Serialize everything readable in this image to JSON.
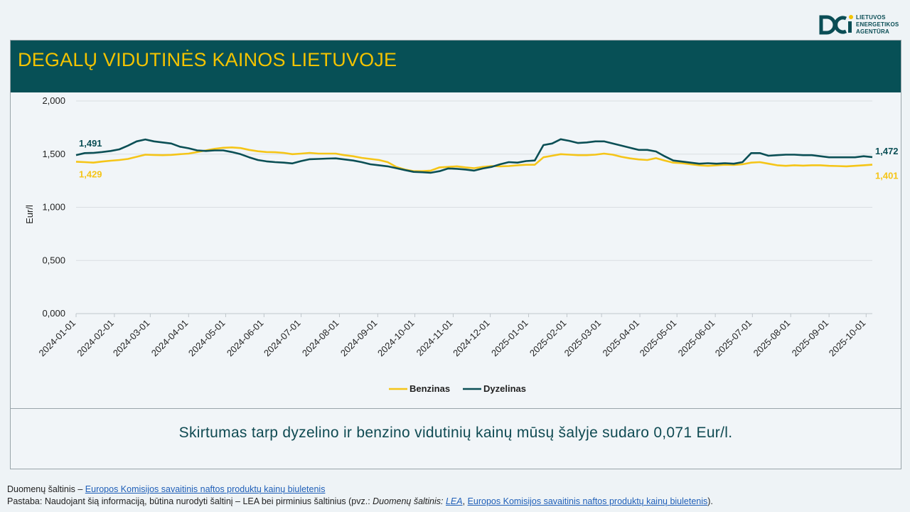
{
  "logo": {
    "line1": "LIETUVOS",
    "line2": "ENERGETIKOS",
    "line3": "AGENTŪRA",
    "color": "#0a4d55"
  },
  "title": "DEGALŲ VIDUTINĖS KAINOS LIETUVOJE",
  "summary": "Skirtumas tarp dyzelino ir benzino vidutinių kainų mūsų šalyje sudaro 0,071 Eur/l.",
  "footer": {
    "source_prefix": "Duomenų šaltinis – ",
    "source_link": "Europos Komisijos savaitinis naftos produktų kainų biuletenis",
    "note_prefix": "Pastaba: Naudojant šią informaciją, būtina nurodyti šaltinį – LEA bei pirminius šaltinius (pvz.: ",
    "note_italic": "Duomenų šaltinis: ",
    "note_link1": "LEA",
    "note_sep": ", ",
    "note_link2": "Europos Komisijos savaitinis naftos produktų kainų biuletenis",
    "note_suffix": ")."
  },
  "chart_data": {
    "type": "line",
    "ylabel": "Eur/l",
    "ylim": [
      0,
      2
    ],
    "yticks": [
      "0,000",
      "0,500",
      "1,000",
      "1,500",
      "2,000"
    ],
    "xlim": [
      "2024-01-01",
      "2025-10-06"
    ],
    "xticks": [
      "2024-01-01",
      "2024-02-01",
      "2024-03-01",
      "2024-04-01",
      "2024-05-01",
      "2024-06-01",
      "2024-07-01",
      "2024-08-01",
      "2024-09-01",
      "2024-10-01",
      "2024-11-01",
      "2024-12-01",
      "2025-01-01",
      "2025-02-01",
      "2025-03-01",
      "2025-04-01",
      "2025-05-01",
      "2025-06-01",
      "2025-07-01",
      "2025-08-01",
      "2025-09-01",
      "2025-10-01"
    ],
    "grid": true,
    "legend": "bottom",
    "series": [
      {
        "name": "Benzinas",
        "color": "#f5c518",
        "start_label": "1,429",
        "end_label": "1,401",
        "points": [
          [
            "2024-01-01",
            1.429
          ],
          [
            "2024-01-08",
            1.425
          ],
          [
            "2024-01-15",
            1.42
          ],
          [
            "2024-01-22",
            1.43
          ],
          [
            "2024-01-29",
            1.438
          ],
          [
            "2024-02-05",
            1.445
          ],
          [
            "2024-02-12",
            1.455
          ],
          [
            "2024-02-19",
            1.475
          ],
          [
            "2024-02-26",
            1.495
          ],
          [
            "2024-03-04",
            1.492
          ],
          [
            "2024-03-11",
            1.49
          ],
          [
            "2024-03-18",
            1.493
          ],
          [
            "2024-03-25",
            1.5
          ],
          [
            "2024-04-01",
            1.505
          ],
          [
            "2024-04-08",
            1.52
          ],
          [
            "2024-04-15",
            1.535
          ],
          [
            "2024-04-22",
            1.55
          ],
          [
            "2024-04-29",
            1.56
          ],
          [
            "2024-05-06",
            1.563
          ],
          [
            "2024-05-13",
            1.557
          ],
          [
            "2024-05-20",
            1.54
          ],
          [
            "2024-05-27",
            1.527
          ],
          [
            "2024-06-03",
            1.52
          ],
          [
            "2024-06-10",
            1.518
          ],
          [
            "2024-06-17",
            1.512
          ],
          [
            "2024-06-24",
            1.5
          ],
          [
            "2024-07-01",
            1.505
          ],
          [
            "2024-07-08",
            1.512
          ],
          [
            "2024-07-15",
            1.505
          ],
          [
            "2024-07-22",
            1.505
          ],
          [
            "2024-07-29",
            1.505
          ],
          [
            "2024-08-05",
            1.49
          ],
          [
            "2024-08-12",
            1.48
          ],
          [
            "2024-08-19",
            1.465
          ],
          [
            "2024-08-26",
            1.455
          ],
          [
            "2024-09-02",
            1.445
          ],
          [
            "2024-09-09",
            1.425
          ],
          [
            "2024-09-16",
            1.38
          ],
          [
            "2024-09-23",
            1.355
          ],
          [
            "2024-09-30",
            1.34
          ],
          [
            "2024-10-07",
            1.34
          ],
          [
            "2024-10-14",
            1.345
          ],
          [
            "2024-10-21",
            1.375
          ],
          [
            "2024-10-28",
            1.38
          ],
          [
            "2024-11-04",
            1.385
          ],
          [
            "2024-11-11",
            1.375
          ],
          [
            "2024-11-18",
            1.368
          ],
          [
            "2024-11-25",
            1.38
          ],
          [
            "2024-12-02",
            1.388
          ],
          [
            "2024-12-09",
            1.385
          ],
          [
            "2024-12-16",
            1.388
          ],
          [
            "2024-12-23",
            1.395
          ],
          [
            "2024-12-30",
            1.4
          ],
          [
            "2025-01-06",
            1.4
          ],
          [
            "2025-01-13",
            1.47
          ],
          [
            "2025-01-20",
            1.485
          ],
          [
            "2025-01-27",
            1.5
          ],
          [
            "2025-02-03",
            1.495
          ],
          [
            "2025-02-10",
            1.49
          ],
          [
            "2025-02-17",
            1.49
          ],
          [
            "2025-02-24",
            1.495
          ],
          [
            "2025-03-03",
            1.505
          ],
          [
            "2025-03-10",
            1.495
          ],
          [
            "2025-03-17",
            1.475
          ],
          [
            "2025-03-24",
            1.46
          ],
          [
            "2025-03-31",
            1.45
          ],
          [
            "2025-04-07",
            1.445
          ],
          [
            "2025-04-14",
            1.462
          ],
          [
            "2025-04-21",
            1.44
          ],
          [
            "2025-04-28",
            1.42
          ],
          [
            "2025-05-05",
            1.415
          ],
          [
            "2025-05-12",
            1.405
          ],
          [
            "2025-05-19",
            1.395
          ],
          [
            "2025-05-26",
            1.39
          ],
          [
            "2025-06-02",
            1.395
          ],
          [
            "2025-06-09",
            1.4
          ],
          [
            "2025-06-16",
            1.398
          ],
          [
            "2025-06-23",
            1.405
          ],
          [
            "2025-06-30",
            1.42
          ],
          [
            "2025-07-07",
            1.425
          ],
          [
            "2025-07-14",
            1.41
          ],
          [
            "2025-07-21",
            1.395
          ],
          [
            "2025-07-28",
            1.39
          ],
          [
            "2025-08-04",
            1.395
          ],
          [
            "2025-08-11",
            1.392
          ],
          [
            "2025-08-18",
            1.395
          ],
          [
            "2025-08-25",
            1.395
          ],
          [
            "2025-09-01",
            1.39
          ],
          [
            "2025-09-08",
            1.388
          ],
          [
            "2025-09-15",
            1.385
          ],
          [
            "2025-09-22",
            1.39
          ],
          [
            "2025-09-29",
            1.395
          ],
          [
            "2025-10-06",
            1.401
          ]
        ]
      },
      {
        "name": "Dyzelinas",
        "color": "#0b4f55",
        "start_label": "1,491",
        "end_label": "1,472",
        "points": [
          [
            "2024-01-01",
            1.491
          ],
          [
            "2024-01-08",
            1.51
          ],
          [
            "2024-01-15",
            1.512
          ],
          [
            "2024-01-22",
            1.52
          ],
          [
            "2024-01-29",
            1.53
          ],
          [
            "2024-02-05",
            1.545
          ],
          [
            "2024-02-12",
            1.58
          ],
          [
            "2024-02-19",
            1.62
          ],
          [
            "2024-02-26",
            1.638
          ],
          [
            "2024-03-04",
            1.62
          ],
          [
            "2024-03-11",
            1.61
          ],
          [
            "2024-03-18",
            1.6
          ],
          [
            "2024-03-25",
            1.57
          ],
          [
            "2024-04-01",
            1.555
          ],
          [
            "2024-04-08",
            1.535
          ],
          [
            "2024-04-15",
            1.53
          ],
          [
            "2024-04-22",
            1.535
          ],
          [
            "2024-04-29",
            1.535
          ],
          [
            "2024-05-06",
            1.52
          ],
          [
            "2024-05-13",
            1.5
          ],
          [
            "2024-05-20",
            1.47
          ],
          [
            "2024-05-27",
            1.445
          ],
          [
            "2024-06-03",
            1.432
          ],
          [
            "2024-06-10",
            1.425
          ],
          [
            "2024-06-17",
            1.42
          ],
          [
            "2024-06-24",
            1.413
          ],
          [
            "2024-07-01",
            1.435
          ],
          [
            "2024-07-08",
            1.452
          ],
          [
            "2024-07-15",
            1.455
          ],
          [
            "2024-07-22",
            1.458
          ],
          [
            "2024-07-29",
            1.46
          ],
          [
            "2024-08-05",
            1.45
          ],
          [
            "2024-08-12",
            1.44
          ],
          [
            "2024-08-19",
            1.425
          ],
          [
            "2024-08-26",
            1.405
          ],
          [
            "2024-09-02",
            1.395
          ],
          [
            "2024-09-09",
            1.385
          ],
          [
            "2024-09-16",
            1.368
          ],
          [
            "2024-09-23",
            1.35
          ],
          [
            "2024-09-30",
            1.333
          ],
          [
            "2024-10-07",
            1.33
          ],
          [
            "2024-10-14",
            1.325
          ],
          [
            "2024-10-21",
            1.34
          ],
          [
            "2024-10-28",
            1.365
          ],
          [
            "2024-11-04",
            1.362
          ],
          [
            "2024-11-11",
            1.355
          ],
          [
            "2024-11-18",
            1.345
          ],
          [
            "2024-11-25",
            1.365
          ],
          [
            "2024-12-02",
            1.38
          ],
          [
            "2024-12-09",
            1.405
          ],
          [
            "2024-12-16",
            1.425
          ],
          [
            "2024-12-23",
            1.42
          ],
          [
            "2024-12-30",
            1.435
          ],
          [
            "2025-01-06",
            1.44
          ],
          [
            "2025-01-13",
            1.585
          ],
          [
            "2025-01-20",
            1.6
          ],
          [
            "2025-01-27",
            1.64
          ],
          [
            "2025-02-03",
            1.625
          ],
          [
            "2025-02-10",
            1.605
          ],
          [
            "2025-02-17",
            1.61
          ],
          [
            "2025-02-24",
            1.62
          ],
          [
            "2025-03-03",
            1.62
          ],
          [
            "2025-03-10",
            1.6
          ],
          [
            "2025-03-17",
            1.58
          ],
          [
            "2025-03-24",
            1.56
          ],
          [
            "2025-03-31",
            1.54
          ],
          [
            "2025-04-07",
            1.54
          ],
          [
            "2025-04-14",
            1.525
          ],
          [
            "2025-04-21",
            1.48
          ],
          [
            "2025-04-28",
            1.44
          ],
          [
            "2025-05-05",
            1.43
          ],
          [
            "2025-05-12",
            1.42
          ],
          [
            "2025-05-19",
            1.41
          ],
          [
            "2025-05-26",
            1.415
          ],
          [
            "2025-06-02",
            1.41
          ],
          [
            "2025-06-09",
            1.415
          ],
          [
            "2025-06-16",
            1.41
          ],
          [
            "2025-06-23",
            1.425
          ],
          [
            "2025-06-30",
            1.51
          ],
          [
            "2025-07-07",
            1.51
          ],
          [
            "2025-07-14",
            1.485
          ],
          [
            "2025-07-21",
            1.49
          ],
          [
            "2025-07-28",
            1.495
          ],
          [
            "2025-08-04",
            1.495
          ],
          [
            "2025-08-11",
            1.49
          ],
          [
            "2025-08-18",
            1.49
          ],
          [
            "2025-08-25",
            1.48
          ],
          [
            "2025-09-01",
            1.47
          ],
          [
            "2025-09-08",
            1.47
          ],
          [
            "2025-09-15",
            1.47
          ],
          [
            "2025-09-22",
            1.47
          ],
          [
            "2025-09-29",
            1.48
          ],
          [
            "2025-10-06",
            1.472
          ]
        ]
      }
    ]
  }
}
